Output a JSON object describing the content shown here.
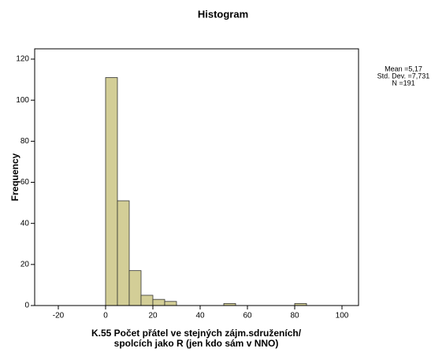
{
  "chart_data": {
    "type": "histogram",
    "title": "Histogram",
    "xlabel": [
      "K.55 Počet přátel ve stejných zájm.sdruženích/",
      "spolcích jako R (jen kdo sám v NNO)"
    ],
    "ylabel": "Frequency",
    "bins": [
      0,
      5,
      10,
      15,
      20,
      25,
      30,
      35,
      40,
      45,
      50,
      55,
      60,
      65,
      70,
      75,
      80,
      85
    ],
    "counts": [
      111,
      51,
      17,
      5,
      3,
      2,
      0,
      0,
      0,
      0,
      1,
      0,
      0,
      0,
      0,
      0,
      1
    ],
    "color": "#d3ce97",
    "xlim": [
      -30,
      107
    ],
    "xticks": [
      -20,
      0,
      20,
      40,
      60,
      80,
      100
    ],
    "ylim": [
      0,
      125
    ],
    "yticks": [
      0,
      20,
      40,
      60,
      80,
      100,
      120
    ],
    "stats": [
      "Mean =5,17",
      "Std. Dev. =7,731",
      "N =191"
    ]
  }
}
